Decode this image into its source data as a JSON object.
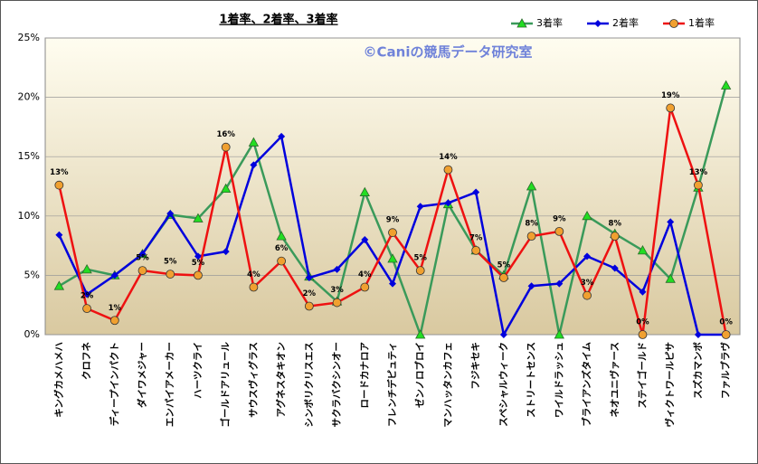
{
  "chart_data": {
    "type": "line",
    "title": "1着率、2着率、3着率",
    "annotations": [
      "©Caniの競馬データ研究室"
    ],
    "categories": [
      "キングカメハメハ",
      "クロフネ",
      "ディープインパクト",
      "ダイワメジャー",
      "エンパイアメーカー",
      "ハーツクライ",
      "ゴールドアリュール",
      "サウスヴィグラス",
      "アグネスタキオン",
      "シンボリクリスエス",
      "サクラバクシンオー",
      "ロードカナロア",
      "フレンチデピュティ",
      "ゼンノロブロイ",
      "マンハッタンカフェ",
      "フジキセキ",
      "スペシャルウィーク",
      "ストリートセンス",
      "ワイルドラッシュ",
      "ブライアンズタイム",
      "ネオユニヴァース",
      "ステイゴールド",
      "ヴィクトワールピサ",
      "スズカマンボ",
      "ファルブラヴ"
    ],
    "series": [
      {
        "name": "3着率",
        "color": "#3a9a5a",
        "marker": "triangle",
        "marker_color": "#22dd22",
        "values": [
          4.1,
          5.5,
          5.0,
          6.8,
          10.1,
          9.8,
          12.3,
          16.2,
          8.3,
          4.9,
          2.8,
          12.0,
          6.4,
          0,
          11.0,
          7.1,
          5.0,
          12.5,
          0,
          10.0,
          8.5,
          7.1,
          4.7,
          12.4,
          21.0
        ]
      },
      {
        "name": "2着率",
        "color": "#0000dd",
        "marker": "diamond",
        "marker_color": "#0000dd",
        "values": [
          8.4,
          3.4,
          5.0,
          6.8,
          10.2,
          6.6,
          7.0,
          14.3,
          16.7,
          4.8,
          5.5,
          8.0,
          4.3,
          10.8,
          11.1,
          12.0,
          0,
          4.1,
          4.3,
          6.6,
          5.6,
          3.6,
          9.5,
          0,
          0
        ]
      },
      {
        "name": "1着率",
        "color": "#ee1111",
        "marker": "circle",
        "marker_color": "#f0a030",
        "values": [
          12.6,
          2.2,
          1.2,
          5.4,
          5.1,
          5.0,
          15.8,
          4.0,
          6.2,
          2.4,
          2.7,
          4.0,
          8.6,
          5.4,
          13.9,
          7.1,
          4.8,
          8.3,
          8.7,
          3.3,
          8.3,
          0,
          19.1,
          12.6,
          0
        ],
        "value_labels": [
          "13%",
          "2%",
          "1%",
          "5%",
          "5%",
          "5%",
          "16%",
          "4%",
          "6%",
          "2%",
          "3%",
          "4%",
          "9%",
          "5%",
          "14%",
          "7%",
          "5%",
          "8%",
          "9%",
          "3%",
          "8%",
          "0%",
          "19%",
          "13%",
          "0%"
        ]
      }
    ],
    "ylim": [
      0,
      25
    ],
    "yticks": [
      {
        "value": 0,
        "label": "0%"
      },
      {
        "value": 5,
        "label": "5%"
      },
      {
        "value": 10,
        "label": "10%"
      },
      {
        "value": 15,
        "label": "15%"
      },
      {
        "value": 20,
        "label": "20%"
      },
      {
        "value": 25,
        "label": "25%"
      }
    ],
    "grid": true,
    "legend": "top-right"
  }
}
